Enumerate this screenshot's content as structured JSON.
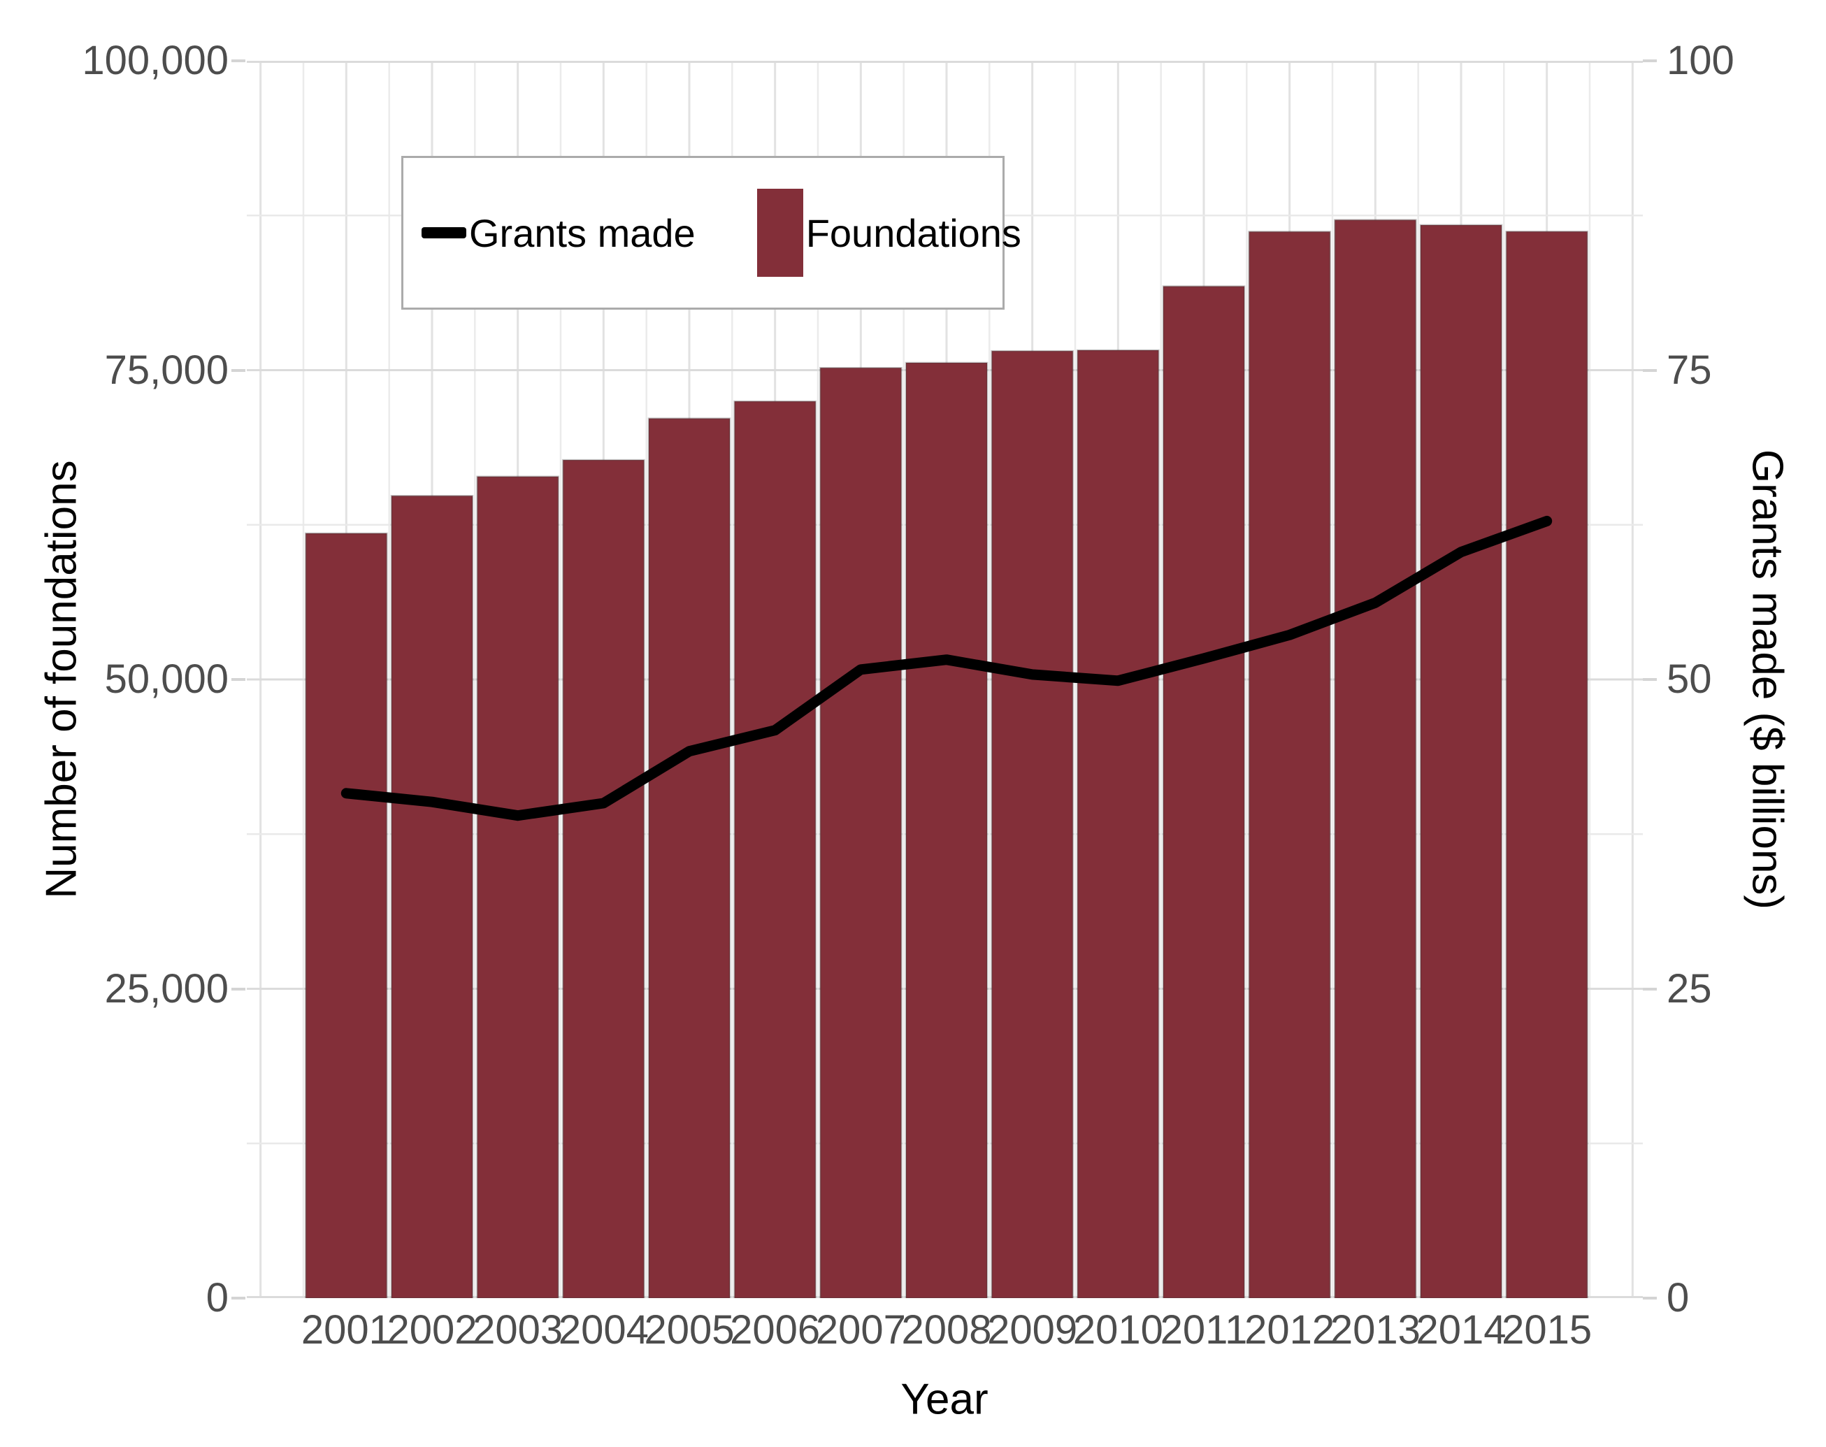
{
  "chart_data": {
    "type": "bar+line combo",
    "categories": [
      "2001",
      "2002",
      "2003",
      "2004",
      "2005",
      "2006",
      "2007",
      "2008",
      "2009",
      "2010",
      "2011",
      "2012",
      "2013",
      "2014",
      "2015"
    ],
    "series": [
      {
        "name": "Foundations",
        "type": "bar",
        "axis": "left",
        "color": "#832F39",
        "values": [
          61810,
          64843,
          66398,
          67736,
          71095,
          72477,
          75187,
          75595,
          76545,
          76610,
          81777,
          86192,
          87142,
          86726,
          86203
        ]
      },
      {
        "name": "Grants made",
        "type": "line",
        "axis": "right",
        "color": "#000000",
        "values": [
          40.8,
          40.1,
          39.0,
          40.0,
          44.2,
          45.9,
          50.8,
          51.6,
          50.4,
          49.9,
          51.7,
          53.6,
          56.2,
          60.3,
          62.8
        ]
      }
    ],
    "left_axis": {
      "label": "Number of foundations",
      "range": [
        0,
        100000
      ],
      "minor_step": 12500,
      "ticks": [
        {
          "label": "0",
          "value": 0
        },
        {
          "label": "25,000",
          "value": 25000
        },
        {
          "label": "50,000",
          "value": 50000
        },
        {
          "label": "75,000",
          "value": 75000
        },
        {
          "label": "100,000",
          "value": 100000
        }
      ]
    },
    "right_axis": {
      "label": "Grants made ($ billions)",
      "range": [
        0,
        100
      ],
      "ticks": [
        {
          "label": "0",
          "value": 0
        },
        {
          "label": "25",
          "value": 25
        },
        {
          "label": "50",
          "value": 50
        },
        {
          "label": "75",
          "value": 75
        },
        {
          "label": "100",
          "value": 100
        }
      ]
    },
    "x_axis": {
      "label": "Year"
    },
    "legend": {
      "position": "top-left-inset",
      "entries": [
        {
          "label": "Grants made",
          "swatch": "line",
          "color": "#000000"
        },
        {
          "label": "Foundations",
          "swatch": "rect",
          "color": "#832F39"
        }
      ]
    },
    "grid": true
  },
  "colors": {
    "bar_fill": "#832F39",
    "bar_edge": "rgba(60,60,60,0.30)",
    "line": "#000000",
    "grid_major_h": "#DBDBDB",
    "grid_minor_h": "#E9E9E9",
    "grid_major_v": "#E2E2E2",
    "grid_minor_v": "#EBEBEB",
    "tick_mark": "#D4D4D4",
    "tick_text": "#4D4D4D",
    "background": "#FFFFFF"
  }
}
